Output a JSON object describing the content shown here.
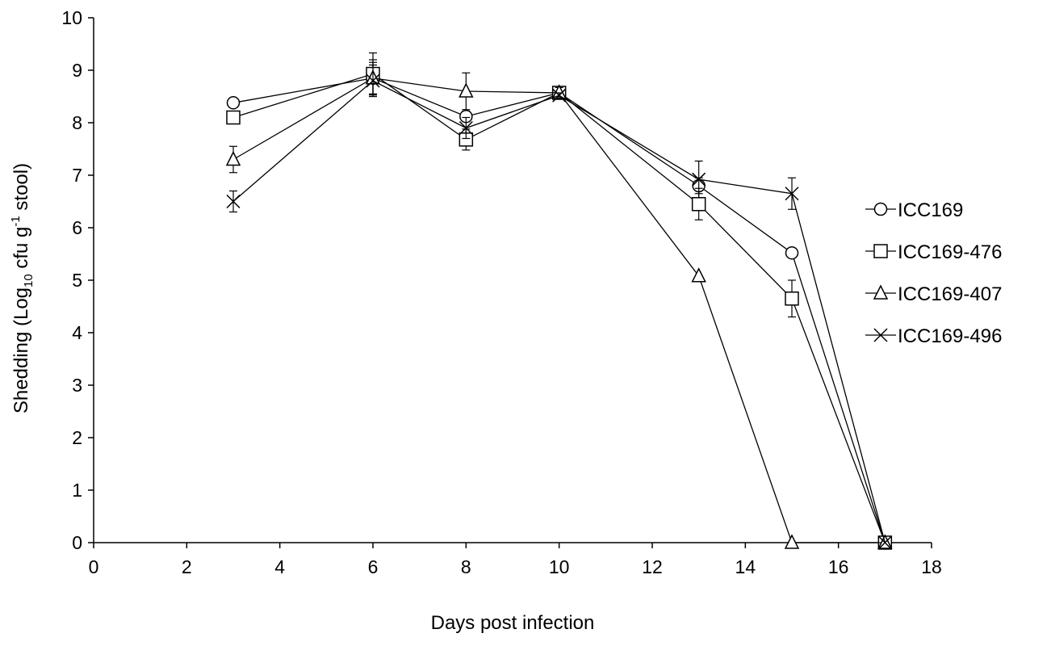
{
  "chart_data": {
    "type": "line",
    "xlabel": "Days post infection",
    "ylabel": {
      "prefix": "Shedding (Log",
      "sub": "10",
      "mid": " cfu g",
      "sup": "-1",
      "suffix": " stool)"
    },
    "xlim": [
      0,
      18
    ],
    "ylim": [
      0,
      10
    ],
    "xticks": [
      0,
      2,
      4,
      6,
      8,
      10,
      12,
      14,
      16,
      18
    ],
    "yticks": [
      0,
      1,
      2,
      3,
      4,
      5,
      6,
      7,
      8,
      9,
      10
    ],
    "grid": false,
    "legend_position": "right",
    "series": [
      {
        "name": "ICC169",
        "marker": "circle",
        "x": [
          3,
          6,
          8,
          10,
          13,
          15,
          17
        ],
        "y": [
          8.38,
          8.85,
          8.12,
          8.57,
          6.8,
          5.52,
          0
        ],
        "err": [
          0.05,
          0.35,
          0.1,
          0.05,
          0.15,
          0.05,
          0
        ]
      },
      {
        "name": "ICC169-476",
        "marker": "square",
        "x": [
          3,
          6,
          8,
          10,
          13,
          15,
          17
        ],
        "y": [
          8.1,
          8.93,
          7.68,
          8.57,
          6.45,
          4.65,
          0
        ],
        "err": [
          0.1,
          0.4,
          0.2,
          0.05,
          0.3,
          0.35,
          0
        ]
      },
      {
        "name": "ICC169-407",
        "marker": "triangle",
        "x": [
          3,
          6,
          8,
          10,
          13,
          15,
          17
        ],
        "y": [
          7.3,
          8.85,
          8.6,
          8.57,
          5.08,
          0,
          0
        ],
        "err": [
          0.25,
          0.3,
          0.35,
          0.1,
          0,
          0,
          0
        ]
      },
      {
        "name": "ICC169-496",
        "marker": "x",
        "x": [
          3,
          6,
          8,
          10,
          13,
          15,
          17
        ],
        "y": [
          6.5,
          8.8,
          7.9,
          8.52,
          6.92,
          6.65,
          0
        ],
        "err": [
          0.2,
          0.3,
          0.2,
          0.05,
          0.35,
          0.3,
          0
        ]
      }
    ]
  }
}
